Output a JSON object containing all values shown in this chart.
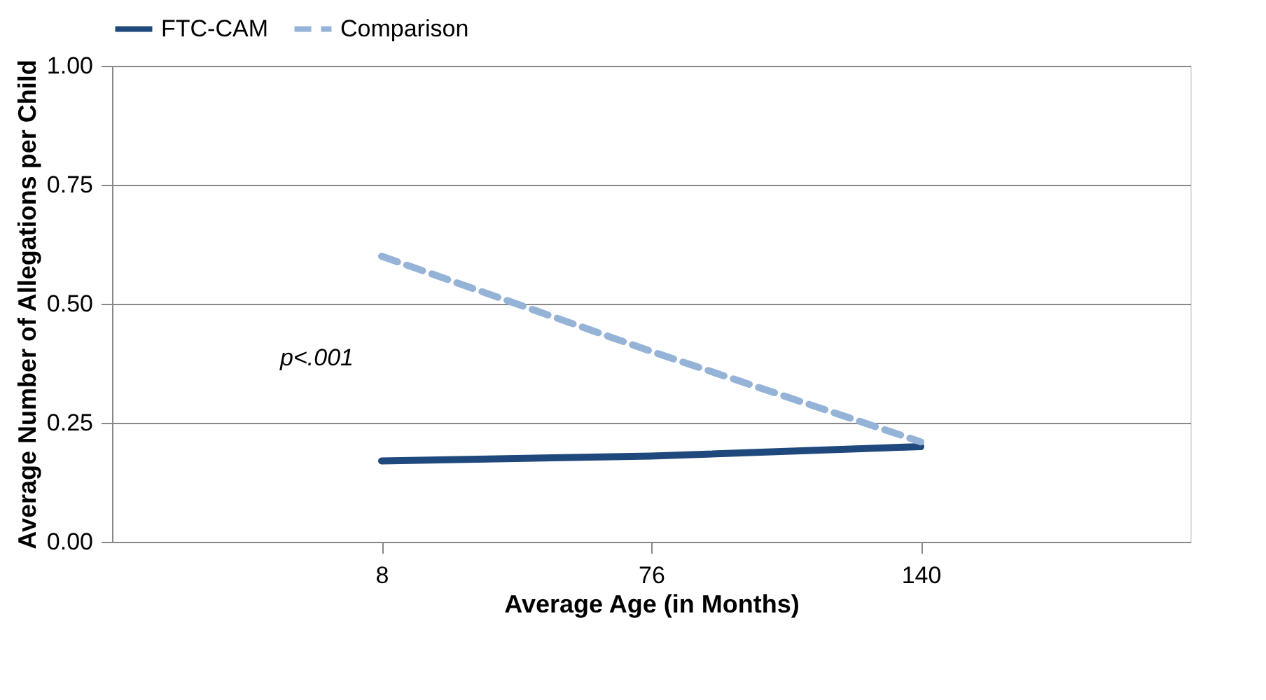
{
  "chart_data": {
    "type": "line",
    "xlabel": "Average Age (in Months)",
    "ylabel": "Average Number of Allegations per Child",
    "categories": [
      "8",
      "76",
      "140"
    ],
    "series": [
      {
        "name": "FTC-CAM",
        "color": "#1f497d",
        "line_style": "solid",
        "values": [
          0.17,
          0.18,
          0.2
        ]
      },
      {
        "name": "Comparison",
        "color": "#95b3d7",
        "line_style": "dashed",
        "values": [
          0.6,
          0.4,
          0.21
        ]
      }
    ],
    "ylim": [
      0,
      1
    ],
    "yticks": [
      {
        "value": 0,
        "label": "0.00"
      },
      {
        "value": 0.25,
        "label": "0.25"
      },
      {
        "value": 0.5,
        "label": "0.50"
      },
      {
        "value": 0.75,
        "label": "0.75"
      },
      {
        "value": 1,
        "label": "1.00"
      }
    ],
    "grid": "y",
    "legend": "top",
    "marker": "none",
    "annotations": [
      "p<.001"
    ]
  }
}
